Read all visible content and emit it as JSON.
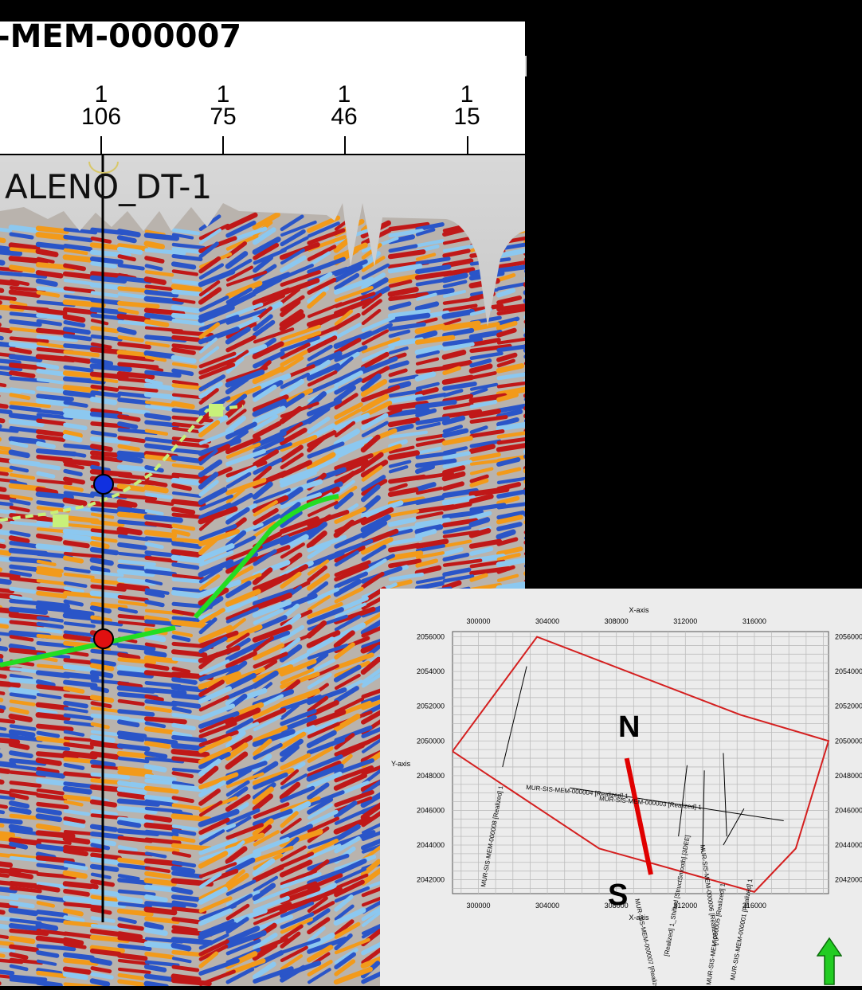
{
  "section_title": "-MEM-000007",
  "well_label": "ALENO_DT-1",
  "trace_header": {
    "row1": [
      "1",
      "1",
      "1",
      "1"
    ],
    "row2": [
      "106",
      "75",
      "46",
      "15"
    ]
  },
  "colors": {
    "seismic_positive": "#c01818",
    "seismic_peak": "#f29a1a",
    "seismic_negative": "#2a55c8",
    "seismic_trough_light": "#8cc8f0",
    "horizon_green": "#22dd22",
    "horizon_light": "#c8f07a",
    "well_marker_top": "#1030e0",
    "well_marker_bottom": "#e01010",
    "survey_outline": "#d41f1f",
    "section_line": "#e00000",
    "arrow": "#22cc22"
  },
  "map": {
    "x_axis_title": "X-axis",
    "y_axis_title": "Y-axis",
    "x_tick_labels": [
      "300000",
      "304000",
      "308000",
      "312000",
      "316000"
    ],
    "y_tick_labels": [
      "2056000",
      "2054000",
      "2052000",
      "2050000",
      "2048000",
      "2046000",
      "2044000",
      "2042000"
    ],
    "north_label": "N",
    "south_label": "S",
    "line_labels": [
      "MUR-SIS-MEM-000008 [Realized] 1",
      "MUR-SIS-MEM-000004 [Realized] 1",
      "MUR-SIS-MEM-000003 [Realized] 1",
      "MUR-SIS-MEM-000007 [Realized] 1",
      "[Realized] 1_Shifted [StructSmooth] [3DEE]",
      "MUR-SIS-MEM-000006 [Realized] 1",
      "MUR-SIS-MEM-000005 [Realized] 1",
      "MUR-SIS-MEM-000001 [Realized] 1"
    ]
  },
  "chart_data": {
    "type": "scatter",
    "title": "",
    "xlabel": "X-axis",
    "ylabel": "Y-axis",
    "xlim": [
      298500,
      320300
    ],
    "ylim": [
      2041200,
      2056300
    ],
    "x_ticks": [
      300000,
      304000,
      308000,
      312000,
      316000
    ],
    "y_ticks": [
      2042000,
      2044000,
      2046000,
      2048000,
      2050000,
      2052000,
      2054000,
      2056000
    ],
    "grid": true,
    "series": [
      {
        "name": "",
        "kind": "polygon",
        "points": [
          [
            298500,
            2049400
          ],
          [
            303400,
            2056000
          ],
          [
            315200,
            2051500
          ],
          [
            320300,
            2050000
          ],
          [
            318400,
            2043800
          ],
          [
            316000,
            2041300
          ],
          [
            307000,
            2043800
          ],
          [
            298500,
            2049400
          ]
        ]
      },
      {
        "name": "MUR-SIS-MEM-000008 [Realized] 1",
        "kind": "line",
        "points": [
          [
            302800,
            2054300
          ],
          [
            301400,
            2048500
          ]
        ]
      },
      {
        "name": "MUR-SIS-MEM-000004 [Realized] 1",
        "kind": "line",
        "points": [
          [
            305300,
            2047300
          ],
          [
            317700,
            2045400
          ]
        ]
      },
      {
        "name": "MUR-SIS-MEM-000007 [Realized] 1",
        "kind": "section",
        "points": [
          [
            308600,
            2049000
          ],
          [
            310000,
            2042300
          ]
        ]
      },
      {
        "name": "[Realized] 1_Shifted [StructSmooth] [3DEE]",
        "kind": "line",
        "points": [
          [
            312100,
            2048600
          ],
          [
            311600,
            2044500
          ]
        ]
      },
      {
        "name": "MUR-SIS-MEM-000006 [Realized] 1",
        "kind": "line",
        "points": [
          [
            313100,
            2048300
          ],
          [
            313000,
            2043600
          ]
        ]
      },
      {
        "name": "MUR-SIS-MEM-000005 [Realized] 1",
        "kind": "line",
        "points": [
          [
            314200,
            2049300
          ],
          [
            314400,
            2044500
          ]
        ]
      },
      {
        "name": "MUR-SIS-MEM-000001 [Realized] 1",
        "kind": "line",
        "points": [
          [
            315400,
            2046100
          ],
          [
            314200,
            2044000
          ]
        ]
      }
    ]
  }
}
